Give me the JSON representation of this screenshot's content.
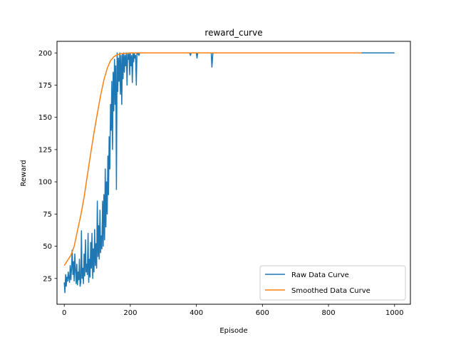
{
  "chart_data": {
    "type": "line",
    "title": "reward_curve",
    "xlabel": "Episode",
    "ylabel": "Reward",
    "xlim": [
      -22,
      1048
    ],
    "ylim": [
      5,
      209
    ],
    "xticks": [
      0,
      200,
      400,
      600,
      800,
      1000
    ],
    "yticks": [
      25,
      50,
      75,
      100,
      125,
      150,
      175,
      200
    ],
    "grid": false,
    "legend": "lower-right",
    "colors": {
      "raw": "#1f77b4",
      "smoothed": "#ff7f0e"
    },
    "series": [
      {
        "name": "Raw Data Curve",
        "x": [
          0,
          2,
          4,
          6,
          8,
          10,
          12,
          14,
          16,
          18,
          20,
          22,
          24,
          26,
          28,
          30,
          32,
          34,
          36,
          38,
          40,
          42,
          44,
          46,
          48,
          50,
          52,
          54,
          56,
          58,
          60,
          62,
          64,
          66,
          68,
          70,
          72,
          74,
          76,
          78,
          80,
          82,
          84,
          86,
          88,
          90,
          92,
          94,
          96,
          98,
          100,
          102,
          104,
          106,
          108,
          110,
          112,
          114,
          116,
          118,
          120,
          122,
          124,
          126,
          128,
          130,
          132,
          134,
          136,
          138,
          140,
          142,
          144,
          146,
          148,
          150,
          152,
          154,
          156,
          158,
          160,
          162,
          164,
          166,
          168,
          170,
          172,
          174,
          176,
          178,
          180,
          182,
          184,
          186,
          188,
          190,
          192,
          194,
          196,
          198,
          200,
          202,
          204,
          206,
          208,
          210,
          212,
          214,
          216,
          218,
          220,
          222,
          224,
          226,
          228,
          230,
          240,
          250,
          260,
          270,
          280,
          300,
          320,
          340,
          360,
          380,
          382,
          384,
          390,
          400,
          402,
          404,
          410,
          420,
          440,
          445,
          447,
          450,
          460,
          480,
          500,
          600,
          700,
          800,
          900,
          1000
        ],
        "y": [
          22,
          14,
          28,
          19,
          26,
          23,
          30,
          25,
          22,
          35,
          24,
          33,
          47,
          28,
          38,
          23,
          44,
          31,
          21,
          36,
          20,
          30,
          24,
          40,
          19,
          22,
          62,
          25,
          33,
          21,
          44,
          27,
          55,
          30,
          36,
          28,
          60,
          22,
          40,
          26,
          53,
          33,
          60,
          25,
          48,
          30,
          63,
          35,
          52,
          33,
          85,
          42,
          66,
          40,
          78,
          45,
          58,
          48,
          85,
          50,
          90,
          55,
          110,
          65,
          100,
          75,
          120,
          90,
          135,
          110,
          160,
          140,
          178,
          125,
          185,
          155,
          195,
          160,
          190,
          94,
          200,
          170,
          196,
          178,
          200,
          168,
          198,
          160,
          199,
          180,
          200,
          185,
          198,
          190,
          200,
          175,
          199,
          195,
          200,
          183,
          200,
          190,
          198,
          177,
          200,
          193,
          200,
          196,
          198,
          175,
          200,
          199,
          200,
          198,
          200,
          200,
          200,
          200,
          200,
          200,
          200,
          200,
          200,
          200,
          200,
          200,
          198,
          200,
          200,
          200,
          196,
          200,
          200,
          200,
          200,
          200,
          189,
          200,
          200,
          200,
          200,
          200,
          200,
          200,
          200,
          200
        ]
      },
      {
        "name": "Smoothed Data Curve",
        "x": [
          0,
          10,
          20,
          30,
          40,
          50,
          60,
          70,
          80,
          90,
          100,
          110,
          120,
          130,
          140,
          150,
          160,
          170,
          180,
          190,
          200,
          220,
          240,
          260,
          280,
          300,
          400,
          500,
          600,
          700,
          800,
          900
        ],
        "y": [
          35,
          39,
          43,
          50,
          62,
          74,
          88,
          105,
          122,
          138,
          153,
          167,
          179,
          188,
          194,
          197,
          198.5,
          199.3,
          199.6,
          199.8,
          200,
          200,
          200,
          200,
          200,
          200,
          200,
          200,
          200,
          200,
          200,
          200
        ]
      }
    ]
  }
}
